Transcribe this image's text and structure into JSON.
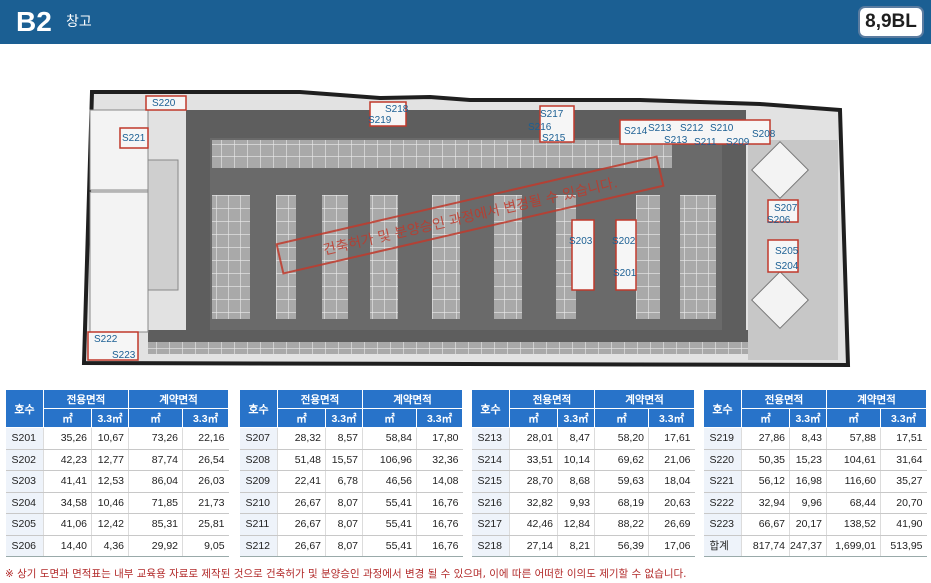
{
  "header": {
    "floor": "B2",
    "subtitle": "창고",
    "badge": "8,9BL"
  },
  "plan": {
    "stamp": "건축허가 및 분양승인 과정에서 변경될 수 있습니다.",
    "units": [
      "S220",
      "S218",
      "S219",
      "S217",
      "S216",
      "S215",
      "S214",
      "S213",
      "S212",
      "S210",
      "S208",
      "S213",
      "S211",
      "S209",
      "S221",
      "S207",
      "S206",
      "S203",
      "S202",
      "S201",
      "S205",
      "S204",
      "S222",
      "S223"
    ]
  },
  "table_headers": {
    "ho": "호수",
    "exclusive": "전용면적",
    "contract": "계약면적",
    "sqm": "㎡",
    "pyeong": "3.3㎡"
  },
  "tables": [
    {
      "rows": [
        [
          "S201",
          "35,26",
          "10,67",
          "73,26",
          "22,16"
        ],
        [
          "S202",
          "42,23",
          "12,77",
          "87,74",
          "26,54"
        ],
        [
          "S203",
          "41,41",
          "12,53",
          "86,04",
          "26,03"
        ],
        [
          "S204",
          "34,58",
          "10,46",
          "71,85",
          "21,73"
        ],
        [
          "S205",
          "41,06",
          "12,42",
          "85,31",
          "25,81"
        ],
        [
          "S206",
          "14,40",
          "4,36",
          "29,92",
          "9,05"
        ]
      ]
    },
    {
      "rows": [
        [
          "S207",
          "28,32",
          "8,57",
          "58,84",
          "17,80"
        ],
        [
          "S208",
          "51,48",
          "15,57",
          "106,96",
          "32,36"
        ],
        [
          "S209",
          "22,41",
          "6,78",
          "46,56",
          "14,08"
        ],
        [
          "S210",
          "26,67",
          "8,07",
          "55,41",
          "16,76"
        ],
        [
          "S211",
          "26,67",
          "8,07",
          "55,41",
          "16,76"
        ],
        [
          "S212",
          "26,67",
          "8,07",
          "55,41",
          "16,76"
        ]
      ]
    },
    {
      "rows": [
        [
          "S213",
          "28,01",
          "8,47",
          "58,20",
          "17,61"
        ],
        [
          "S214",
          "33,51",
          "10,14",
          "69,62",
          "21,06"
        ],
        [
          "S215",
          "28,70",
          "8,68",
          "59,63",
          "18,04"
        ],
        [
          "S216",
          "32,82",
          "9,93",
          "68,19",
          "20,63"
        ],
        [
          "S217",
          "42,46",
          "12,84",
          "88,22",
          "26,69"
        ],
        [
          "S218",
          "27,14",
          "8,21",
          "56,39",
          "17,06"
        ]
      ]
    },
    {
      "rows": [
        [
          "S219",
          "27,86",
          "8,43",
          "57,88",
          "17,51"
        ],
        [
          "S220",
          "50,35",
          "15,23",
          "104,61",
          "31,64"
        ],
        [
          "S221",
          "56,12",
          "16,98",
          "116,60",
          "35,27"
        ],
        [
          "S222",
          "32,94",
          "9,96",
          "68,44",
          "20,70"
        ],
        [
          "S223",
          "66,67",
          "20,17",
          "138,52",
          "41,90"
        ],
        [
          "합계",
          "817,74",
          "247,37",
          "1,699,01",
          "513,95"
        ]
      ]
    }
  ],
  "footnote": "※ 상기 도면과 면적표는 내부 교육용 자료로 제작된 것으로 건축허가 및 분양승인 과정에서 변경 될 수 있으며, 이에 따른 어떠한 이의도 제기할 수 없습니다."
}
